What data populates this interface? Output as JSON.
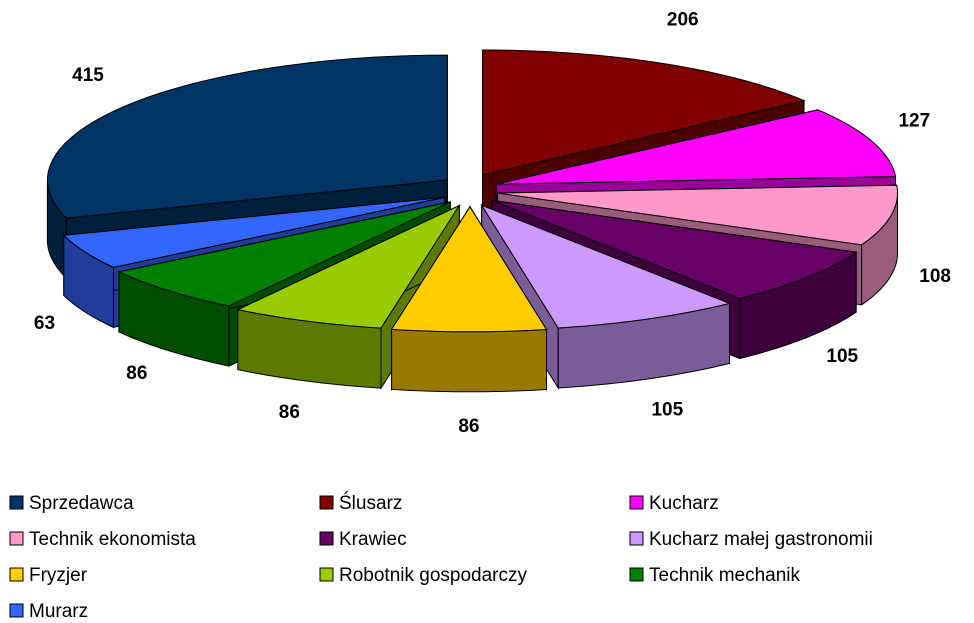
{
  "chart_data": {
    "type": "pie3d",
    "categories": [
      "Sprzedawca",
      "Ślusarz",
      "Kucharz",
      "Technik ekonomista",
      "Krawiec",
      "Kucharz małej gastronomii",
      "Fryzjer",
      "Robotnik gospodarczy",
      "Technik mechanik",
      "Murarz"
    ],
    "values": [
      415,
      206,
      127,
      108,
      105,
      105,
      86,
      86,
      86,
      63
    ],
    "colors": [
      "#003366",
      "#800000",
      "#ff00ff",
      "#ff99cc",
      "#660066",
      "#cc99ff",
      "#ffcc00",
      "#99cc00",
      "#008000",
      "#3366ff"
    ],
    "legend": "bottom"
  }
}
